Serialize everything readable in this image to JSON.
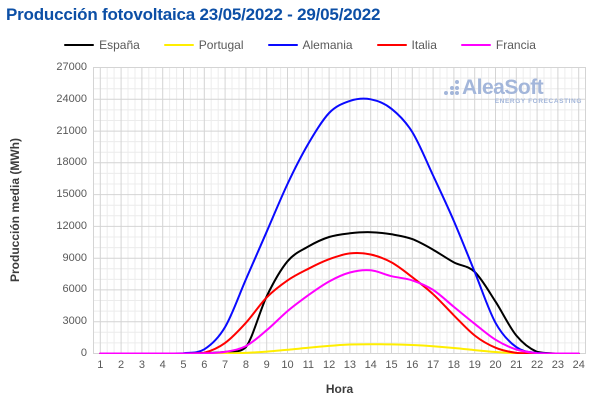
{
  "title": "Producción fotovoltaica 23/05/2022 - 29/05/2022",
  "branding": {
    "logo_text": "AleaSoft",
    "logo_subtext": "ENERGY FORECASTING",
    "logo_color": "#a3b6da"
  },
  "colors": {
    "title": "#0c4fa6",
    "axis_tick_text": "#585858",
    "axis_title_text": "#3c3c3c",
    "grid_major": "#d4d4d4",
    "grid_minor": "#ececec"
  },
  "chart_data": {
    "type": "line",
    "title": "Producción fotovoltaica 23/05/2022 - 29/05/2022",
    "xlabel": "Hora",
    "ylabel": "Producción media (MWh)",
    "x": [
      1,
      2,
      3,
      4,
      5,
      6,
      7,
      8,
      9,
      10,
      11,
      12,
      13,
      14,
      15,
      16,
      17,
      18,
      19,
      20,
      21,
      22,
      23,
      24
    ],
    "xlim": [
      0.65,
      24.35
    ],
    "ylim": [
      0,
      27000
    ],
    "y_ticks": [
      0,
      3000,
      6000,
      9000,
      12000,
      15000,
      18000,
      21000,
      24000,
      27000
    ],
    "grid": "major lines per hour / per 3000 MWh, minor lines at thirds",
    "legend_position": "top",
    "series": [
      {
        "name": "España",
        "color": "#000000",
        "values": [
          0,
          0,
          0,
          0,
          0,
          30,
          150,
          600,
          5400,
          8700,
          10100,
          11000,
          11350,
          11450,
          11250,
          10800,
          9800,
          8600,
          7700,
          4900,
          1700,
          150,
          0,
          0
        ]
      },
      {
        "name": "Portugal",
        "color": "#ffee00",
        "values": [
          0,
          0,
          0,
          0,
          0,
          0,
          10,
          60,
          180,
          350,
          550,
          720,
          850,
          880,
          860,
          800,
          690,
          520,
          320,
          140,
          30,
          0,
          0,
          0
        ]
      },
      {
        "name": "Alemania",
        "color": "#0a0aff",
        "values": [
          0,
          0,
          0,
          0,
          30,
          400,
          2500,
          7000,
          11500,
          16000,
          19800,
          22700,
          23850,
          24000,
          23100,
          20900,
          16800,
          12500,
          7700,
          2900,
          600,
          50,
          0,
          0
        ]
      },
      {
        "name": "Italia",
        "color": "#ff0000",
        "values": [
          0,
          0,
          0,
          0,
          0,
          80,
          1000,
          2900,
          5300,
          6900,
          8000,
          8900,
          9450,
          9350,
          8600,
          7200,
          5600,
          3600,
          1700,
          550,
          60,
          0,
          0,
          0
        ]
      },
      {
        "name": "Francia",
        "color": "#ff00ff",
        "values": [
          0,
          0,
          0,
          0,
          0,
          20,
          150,
          700,
          2200,
          4000,
          5500,
          6800,
          7650,
          7850,
          7300,
          6900,
          6000,
          4400,
          2800,
          1300,
          380,
          30,
          0,
          0
        ]
      }
    ]
  }
}
